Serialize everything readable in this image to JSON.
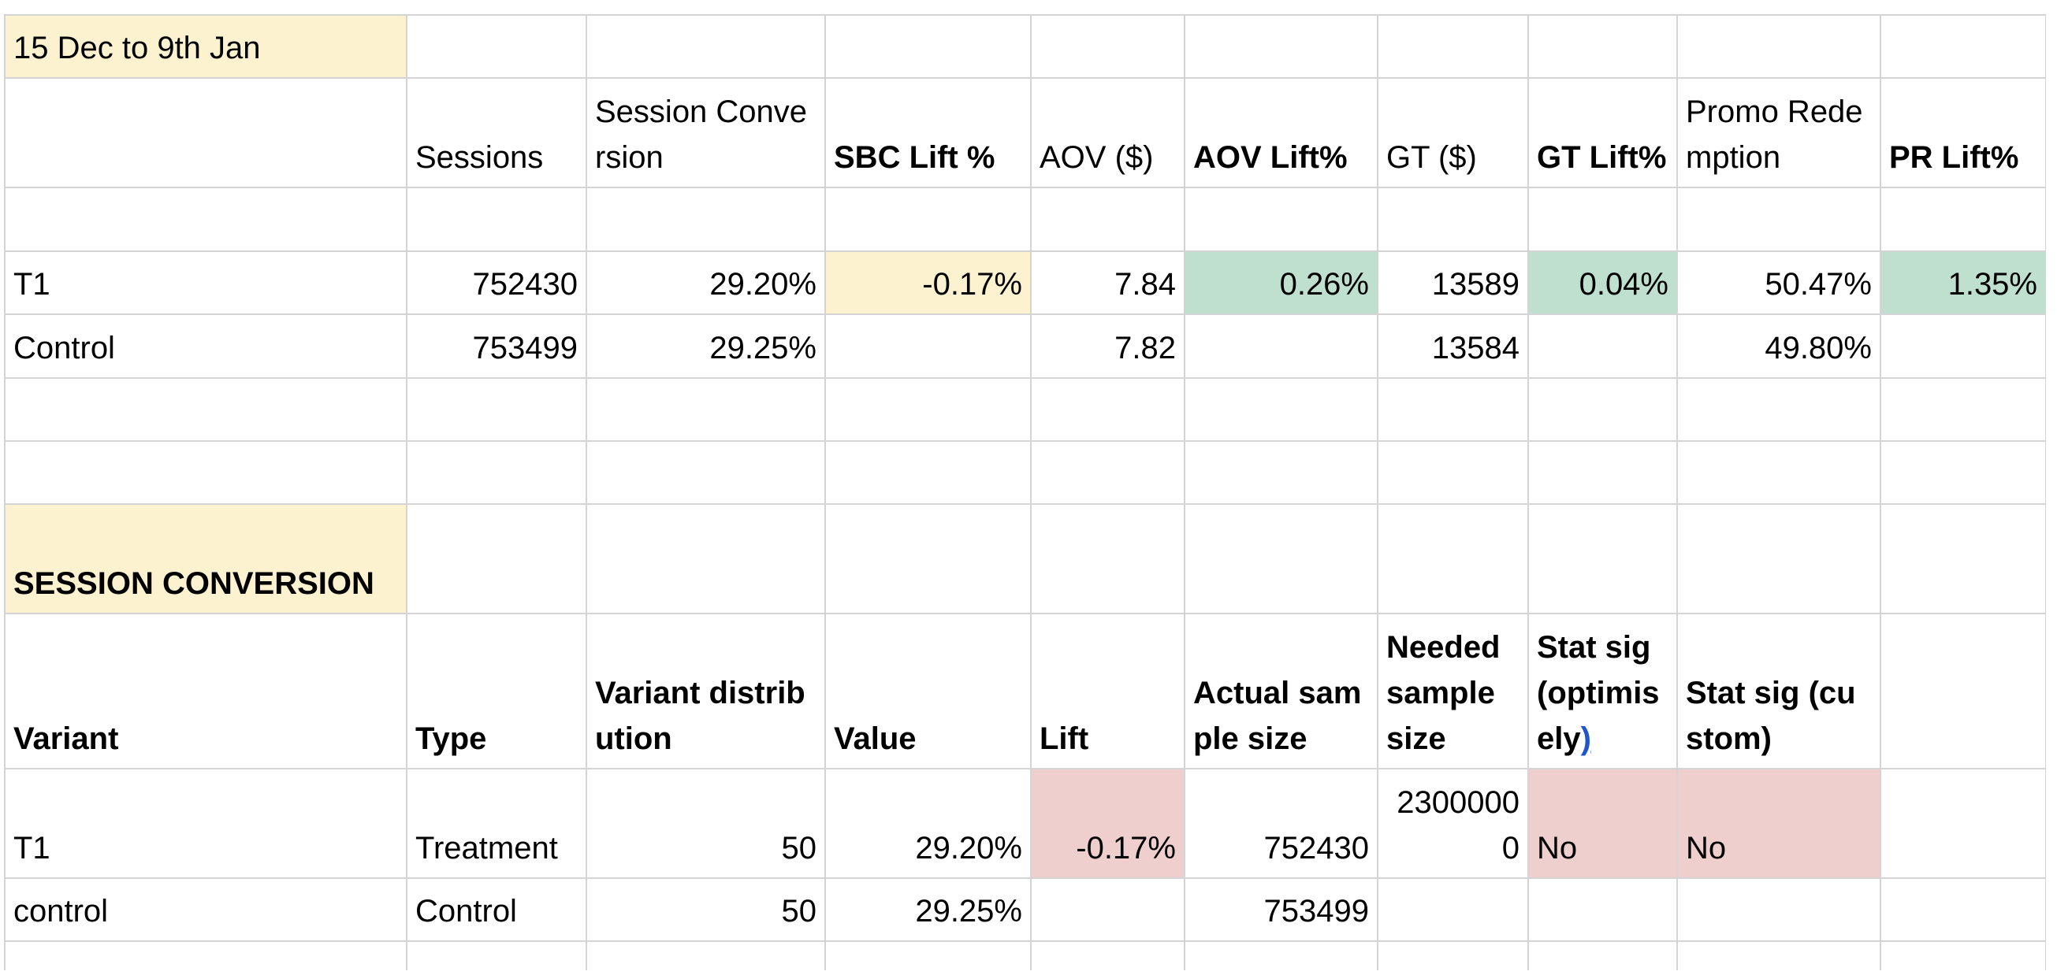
{
  "sheet": {
    "title_cell": "15 Dec to 9th Jan",
    "summary_headers": {
      "sessions": "Sessions",
      "session_conversion": "Session Conversion",
      "sbc_lift": "SBC Lift %",
      "aov": "AOV ($)",
      "aov_lift": "AOV Lift%",
      "gt": "GT ($)",
      "gt_lift": "GT Lift%",
      "promo_redemption": "Promo Redemption",
      "pr_lift": "PR Lift%"
    },
    "summary_rows": [
      {
        "label": "T1",
        "sessions": "752430",
        "session_conversion": "29.20%",
        "sbc_lift": "-0.17%",
        "aov": "7.84",
        "aov_lift": "0.26%",
        "gt": "13589",
        "gt_lift": "0.04%",
        "promo_redemption": "50.47%",
        "pr_lift": "1.35%"
      },
      {
        "label": "Control",
        "sessions": "753499",
        "session_conversion": "29.25%",
        "sbc_lift": "",
        "aov": "7.82",
        "aov_lift": "",
        "gt": "13584",
        "gt_lift": "",
        "promo_redemption": "49.80%",
        "pr_lift": ""
      }
    ],
    "section_title": "SESSION CONVERSION",
    "stats_headers": {
      "variant": "Variant",
      "type": "Type",
      "variant_distribution": "Variant distribution",
      "value": "Value",
      "lift": "Lift",
      "actual_sample_size": "Actual sample size",
      "needed_sample_size": "Needed sample size",
      "stat_sig_optimisely": "Stat sig (optimisely",
      "stat_sig_optimisely_link": ")",
      "stat_sig_custom": "Stat sig (custom)"
    },
    "stats_rows": [
      {
        "variant": "T1",
        "type": "Treatment",
        "variant_distribution": "50",
        "value": "29.20%",
        "lift": "-0.17%",
        "actual_sample_size": "752430",
        "needed_sample_size": "23000000",
        "stat_sig_optimisely": "No",
        "stat_sig_custom": "No"
      },
      {
        "variant": "control",
        "type": "Control",
        "variant_distribution": "50",
        "value": "29.25%",
        "lift": "",
        "actual_sample_size": "753499",
        "needed_sample_size": "",
        "stat_sig_optimisely": "",
        "stat_sig_custom": ""
      }
    ],
    "colors": {
      "highlight_yellow": "#fdf2d0",
      "highlight_green": "#bfe0cf",
      "highlight_red": "#efcece",
      "gridline": "#d4d4d4",
      "link_blue": "#2255cc"
    }
  }
}
